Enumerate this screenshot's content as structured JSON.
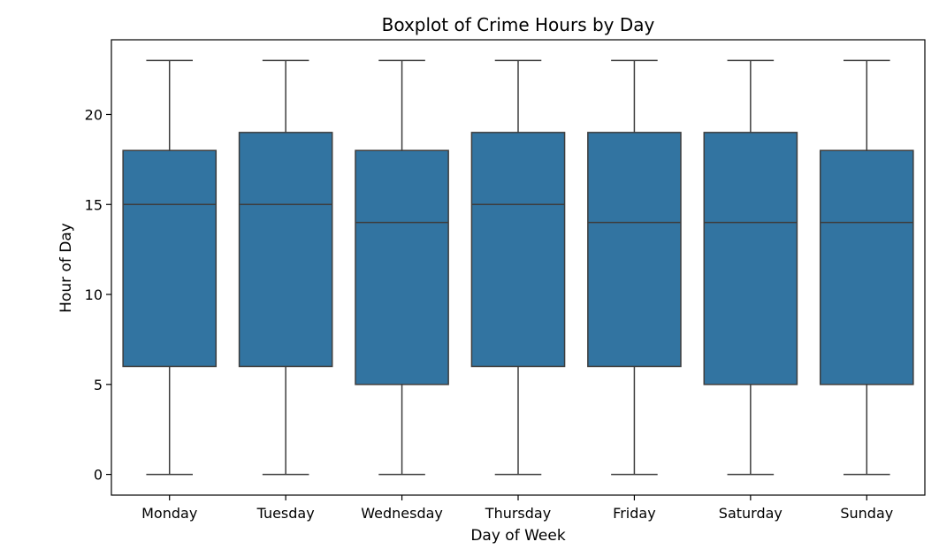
{
  "chart_data": {
    "type": "box",
    "title": "Boxplot of Crime Hours by Day",
    "xlabel": "Day of Week",
    "ylabel": "Hour of Day",
    "categories": [
      "Monday",
      "Tuesday",
      "Wednesday",
      "Thursday",
      "Friday",
      "Saturday",
      "Sunday"
    ],
    "yticks": [
      0,
      5,
      10,
      15,
      20
    ],
    "ylim": [
      -1.15,
      24.15
    ],
    "boxes": [
      {
        "min": 0,
        "q1": 6,
        "median": 15,
        "q3": 18,
        "max": 23
      },
      {
        "min": 0,
        "q1": 6,
        "median": 15,
        "q3": 19,
        "max": 23
      },
      {
        "min": 0,
        "q1": 5,
        "median": 14,
        "q3": 18,
        "max": 23
      },
      {
        "min": 0,
        "q1": 6,
        "median": 15,
        "q3": 19,
        "max": 23
      },
      {
        "min": 0,
        "q1": 6,
        "median": 14,
        "q3": 19,
        "max": 23
      },
      {
        "min": 0,
        "q1": 5,
        "median": 14,
        "q3": 19,
        "max": 23
      },
      {
        "min": 0,
        "q1": 5,
        "median": 14,
        "q3": 18,
        "max": 23
      }
    ],
    "box_color": "#3274a1",
    "line_color": "#3d3d3d",
    "grid": false,
    "legend": "none"
  }
}
